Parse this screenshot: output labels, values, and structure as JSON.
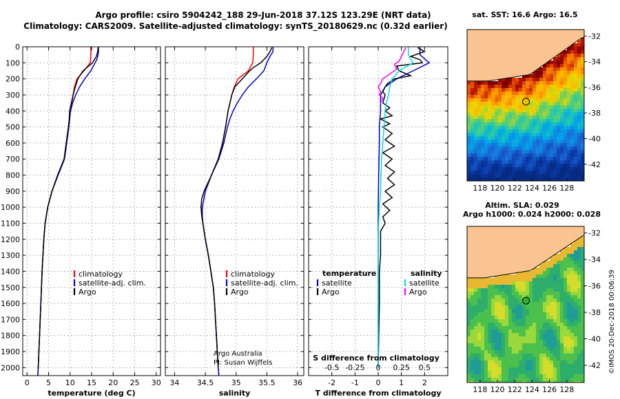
{
  "header": {
    "title_line1": "Argo profile: csiro 5904242_188 29-Jun-2018 37.12S 123.29E (NRT data)",
    "title_line2": "Climatology: CARS2009. Satellite-adjusted climatology: synTS_20180629.nc (0.32d earlier)"
  },
  "colors": {
    "climatology": "#ff0000",
    "satellite": "#0000cc",
    "argo": "#000000",
    "temp_satellite": "#0000cc",
    "sal_satellite": "#00dddd",
    "sal_argo": "#ff00ff",
    "land": "#f9c48f"
  },
  "chart_data": [
    {
      "type": "line",
      "id": "temperature",
      "xlabel": "temperature (deg C)",
      "xlim": [
        -1,
        31
      ],
      "xticks": [
        "0",
        "5",
        "10",
        "15",
        "20",
        "25",
        "30"
      ],
      "ylim": [
        2050,
        0
      ],
      "yticks": [
        "0",
        "100",
        "200",
        "300",
        "400",
        "500",
        "600",
        "700",
        "800",
        "900",
        "1000",
        "1100",
        "1200",
        "1300",
        "1400",
        "1500",
        "1600",
        "1700",
        "1800",
        "1900",
        "2000"
      ],
      "legend": [
        "climatology",
        "satellite-adj. clim.",
        "Argo"
      ],
      "series": [
        {
          "name": "climatology",
          "depth": [
            0,
            50,
            100,
            150,
            200,
            250,
            300,
            350,
            400,
            450,
            500,
            600,
            700,
            800,
            900,
            1000,
            1100,
            1200,
            1400,
            1600,
            1800,
            2000,
            2050
          ],
          "values": [
            14.8,
            14.8,
            14.7,
            13.2,
            11.6,
            11.0,
            10.7,
            10.4,
            10.0,
            9.9,
            9.7,
            9.2,
            8.7,
            7.2,
            5.8,
            4.8,
            4.2,
            3.9,
            3.5,
            3.2,
            2.9,
            2.6,
            2.5
          ]
        },
        {
          "name": "satellite-adj. clim.",
          "depth": [
            0,
            30,
            50,
            80,
            100,
            150,
            200,
            250,
            300,
            350,
            400,
            450,
            500,
            600,
            700,
            800,
            900,
            1000,
            1100,
            1200,
            1400,
            1600,
            1800,
            2000,
            2050
          ],
          "values": [
            16.6,
            16.6,
            16.5,
            16.2,
            15.8,
            14.8,
            13.4,
            12.2,
            11.3,
            10.6,
            10.1,
            9.9,
            9.7,
            9.2,
            8.7,
            7.2,
            5.8,
            4.8,
            4.2,
            3.9,
            3.5,
            3.2,
            2.9,
            2.6,
            2.5
          ]
        },
        {
          "name": "Argo",
          "depth": [
            5,
            30,
            60,
            100,
            150,
            200,
            250,
            300,
            350,
            400,
            450,
            500,
            600,
            700,
            800,
            900,
            1000,
            1100,
            1200,
            1400,
            1600,
            1800,
            2000
          ],
          "values": [
            16.5,
            16.4,
            16.1,
            15.2,
            13.0,
            11.8,
            11.2,
            10.7,
            10.3,
            9.9,
            9.8,
            9.6,
            9.1,
            8.6,
            7.1,
            5.8,
            4.8,
            4.2,
            3.9,
            3.5,
            3.2,
            2.9,
            2.6
          ]
        }
      ]
    },
    {
      "type": "line",
      "id": "salinity",
      "xlabel": "salinity",
      "xlim": [
        33.85,
        36.1
      ],
      "xticks": [
        "34",
        "34.5",
        "35",
        "35.5",
        "36"
      ],
      "ylim": [
        2050,
        0
      ],
      "legend": [
        "climatology",
        "satellite-adj. clim.",
        "Argo"
      ],
      "annotations": [
        "Argo Australia",
        "PI: Susan Wijffels"
      ],
      "series": [
        {
          "name": "climatology",
          "depth": [
            0,
            50,
            100,
            150,
            200,
            250,
            300,
            350,
            400,
            450,
            500,
            600,
            700,
            800,
            900,
            1000,
            1050,
            1100,
            1200,
            1300,
            1400,
            1500,
            1600,
            1800,
            2000,
            2050
          ],
          "values": [
            35.28,
            35.28,
            35.27,
            35.2,
            35.03,
            34.97,
            34.93,
            34.9,
            34.87,
            34.85,
            34.83,
            34.78,
            34.71,
            34.6,
            34.5,
            34.45,
            34.45,
            34.46,
            34.5,
            34.55,
            34.59,
            34.63,
            34.65,
            34.68,
            34.71,
            34.72
          ]
        },
        {
          "name": "satellite-adj. clim.",
          "depth": [
            0,
            30,
            60,
            100,
            150,
            200,
            250,
            300,
            350,
            400,
            450,
            500,
            600,
            700,
            800,
            900,
            1000,
            1050,
            1100,
            1200,
            1300,
            1400,
            1500,
            1600,
            1800,
            2000,
            2050
          ],
          "values": [
            35.6,
            35.6,
            35.55,
            35.5,
            35.45,
            35.33,
            35.2,
            35.1,
            35.02,
            34.95,
            34.9,
            34.86,
            34.8,
            34.72,
            34.6,
            34.5,
            34.45,
            34.45,
            34.46,
            34.5,
            34.55,
            34.59,
            34.63,
            34.65,
            34.68,
            34.71,
            34.72
          ]
        },
        {
          "name": "Argo",
          "depth": [
            5,
            30,
            60,
            100,
            130,
            150,
            200,
            250,
            300,
            350,
            400,
            450,
            500,
            600,
            700,
            800,
            900,
            950,
            1000,
            1050,
            1100,
            1200,
            1300,
            1400,
            1500,
            1600,
            1800,
            2000
          ],
          "values": [
            35.58,
            35.55,
            35.5,
            35.4,
            35.28,
            35.22,
            35.1,
            34.98,
            34.93,
            34.9,
            34.87,
            34.85,
            34.83,
            34.78,
            34.71,
            34.6,
            34.48,
            34.44,
            34.43,
            34.44,
            34.46,
            34.5,
            34.55,
            34.59,
            34.63,
            34.65,
            34.68,
            34.71
          ]
        }
      ]
    },
    {
      "type": "line",
      "id": "differences",
      "xlabel": "T difference from climatology",
      "xlabel_top": "S difference from climatology",
      "xlim": [
        -3,
        3
      ],
      "xticks": [
        "-2",
        "-1",
        "0",
        "1",
        "2"
      ],
      "xticks_top": [
        "-0.5",
        "-0.25",
        "0",
        "0.25",
        "0.5"
      ],
      "ylim": [
        2050,
        0
      ],
      "legend_left_title": "temperature",
      "legend_left": [
        "satellite",
        "Argo"
      ],
      "legend_right_title": "salinity",
      "legend_right": [
        "satellite",
        "Argo"
      ],
      "series": [
        {
          "name": "temperature satellite",
          "depth": [
            0,
            50,
            100,
            150,
            200,
            250,
            300,
            350,
            400,
            500,
            600,
            800,
            1000,
            1200,
            1400,
            2000
          ],
          "values": [
            1.8,
            1.8,
            2.2,
            1.5,
            0.8,
            0.3,
            0.1,
            0.1,
            0.1,
            0.05,
            0.05,
            0.02,
            0.0,
            0.0,
            0.0,
            0.0
          ]
        },
        {
          "name": "temperature Argo",
          "depth": [
            5,
            30,
            60,
            80,
            100,
            120,
            150,
            180,
            200,
            230,
            250,
            280,
            300,
            350,
            380,
            400,
            430,
            450,
            480,
            500,
            540,
            580,
            620,
            660,
            700,
            740,
            780,
            820,
            860,
            900,
            940,
            980,
            1020,
            1060,
            1100,
            1150,
            1200,
            1300,
            1400,
            1600,
            2000
          ],
          "values": [
            1.7,
            2.0,
            1.4,
            1.8,
            1.9,
            0.8,
            0.9,
            1.4,
            0.7,
            0.4,
            0.3,
            0.2,
            0.3,
            0.2,
            0.5,
            0.3,
            0.6,
            0.1,
            0.5,
            0.2,
            0.6,
            0.3,
            0.7,
            0.2,
            0.6,
            0.3,
            0.7,
            0.4,
            0.7,
            0.3,
            0.6,
            0.2,
            0.5,
            0.2,
            0.3,
            0.1,
            0.1,
            0.1,
            0.05,
            0.05,
            0.0
          ]
        },
        {
          "name": "salinity satellite",
          "depth": [
            0,
            50,
            100,
            150,
            200,
            250,
            300,
            350,
            400,
            500,
            600,
            700,
            800,
            900,
            1000,
            1100,
            1200,
            1400,
            2000
          ],
          "values": [
            1.3,
            1.3,
            1.5,
            0.9,
            0.6,
            0.5,
            0.45,
            0.35,
            0.3,
            0.25,
            0.2,
            0.15,
            0.12,
            0.1,
            0.05,
            0.02,
            0.0,
            0.0,
            0.0
          ]
        },
        {
          "name": "salinity Argo",
          "depth": [
            5,
            30,
            60,
            90,
            110,
            140,
            160,
            180,
            200,
            230,
            250,
            280,
            300,
            320,
            350
          ],
          "values": [
            1.2,
            1.1,
            1.0,
            0.9,
            0.7,
            0.8,
            0.6,
            0.4,
            0.2,
            0.1,
            0.0,
            0.1,
            0.05,
            0.2,
            0.1
          ]
        }
      ]
    },
    {
      "type": "heatmap",
      "id": "sst_map",
      "title": "sat. SST: 16.6 Argo: 16.5",
      "xticks": [
        "118",
        "120",
        "122",
        "124",
        "126",
        "128"
      ],
      "yticks": [
        "-32",
        "-34",
        "-36",
        "-38",
        "-40",
        "-42"
      ],
      "xlim": [
        116.5,
        130
      ],
      "ylim": [
        -43.3,
        -31.5
      ],
      "marker": {
        "lon": 123.29,
        "lat": -37.12
      }
    },
    {
      "type": "heatmap",
      "id": "sla_map",
      "title": "Altim. SLA: 0.029",
      "subtitle": "Argo h1000: 0.024 h2000: 0.028",
      "xticks": [
        "118",
        "120",
        "122",
        "124",
        "126",
        "128"
      ],
      "yticks": [
        "-32",
        "-34",
        "-36",
        "-38",
        "-40",
        "-42"
      ],
      "xlim": [
        116.5,
        130
      ],
      "ylim": [
        -43.3,
        -31.5
      ],
      "marker": {
        "lon": 123.29,
        "lat": -37.12
      }
    }
  ],
  "footer": {
    "credit": "©IMOS 20-Dec-2018 00:06:39"
  }
}
